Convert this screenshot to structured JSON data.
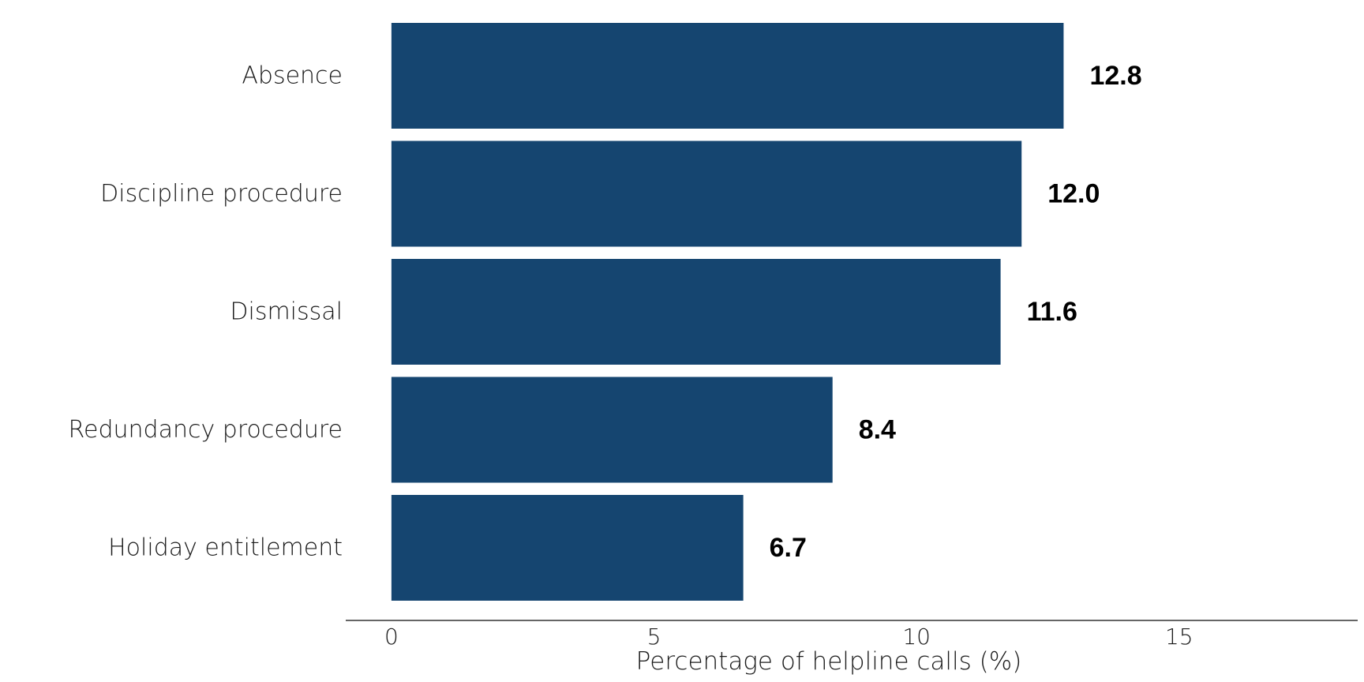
{
  "chart_data": {
    "type": "bar",
    "orientation": "horizontal",
    "categories": [
      "Absence",
      "Discipline procedure",
      "Dismissal",
      "Redundancy procedure",
      "Holiday entitlement"
    ],
    "values": [
      12.8,
      12.0,
      11.6,
      8.4,
      6.7
    ],
    "value_labels": [
      "12.8",
      "12.0",
      "11.6",
      "8.4",
      "6.7"
    ],
    "title": "",
    "xlabel": "Percentage of helpline calls (%)",
    "ylabel": "",
    "xlim": [
      -0.87,
      18.4
    ],
    "xticks": [
      0,
      5,
      10,
      15
    ],
    "xtick_labels": [
      "0",
      "5",
      "10",
      "15"
    ],
    "bar_color": "#154570",
    "grid": false,
    "legend": "none"
  }
}
